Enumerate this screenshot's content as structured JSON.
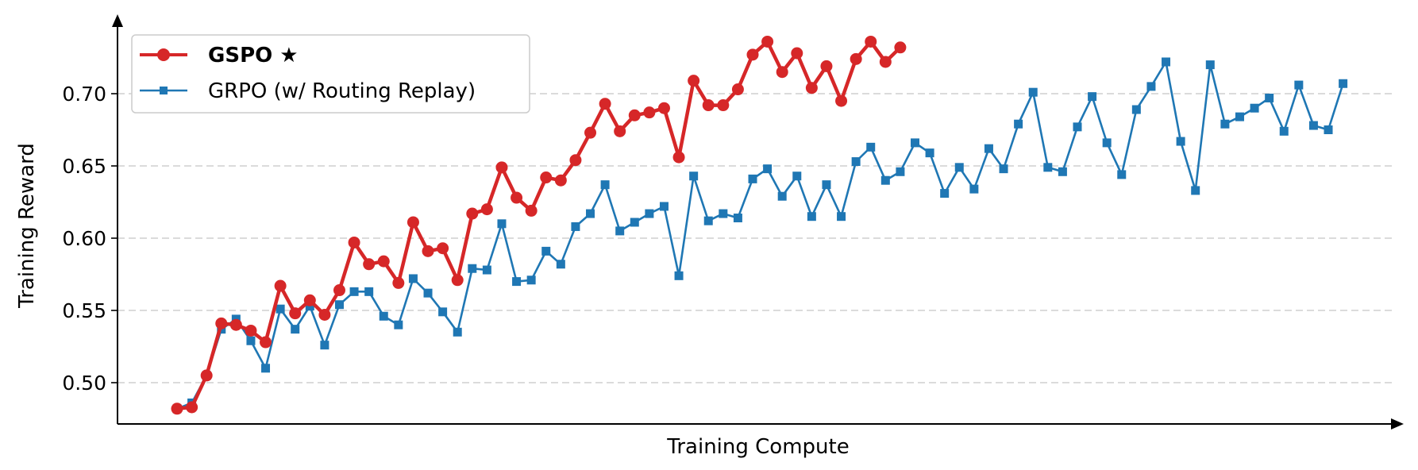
{
  "chart_data": {
    "type": "line",
    "xlabel": "Training Compute",
    "ylabel": "Training Reward",
    "ylim": [
      0.47,
      0.74
    ],
    "yticks": [
      0.5,
      0.55,
      0.6,
      0.65,
      0.7
    ],
    "ytick_labels": [
      "0.50",
      "0.55",
      "0.60",
      "0.65",
      "0.70"
    ],
    "grid": "horizontal dashed",
    "legend_position": "top-left",
    "series": [
      {
        "name": "GSPO ★",
        "color": "#d62728",
        "marker": "circle",
        "values": [
          0.482,
          0.483,
          0.505,
          0.541,
          0.54,
          0.536,
          0.528,
          0.567,
          0.548,
          0.557,
          0.547,
          0.564,
          0.597,
          0.582,
          0.584,
          0.569,
          0.611,
          0.591,
          0.593,
          0.571,
          0.617,
          0.62,
          0.649,
          0.628,
          0.619,
          0.642,
          0.64,
          0.654,
          0.673,
          0.693,
          0.674,
          0.685,
          0.687,
          0.69,
          0.656,
          0.709,
          0.692,
          0.692,
          0.703,
          0.727,
          0.736,
          0.715,
          0.728,
          0.704,
          0.719,
          0.695,
          0.724,
          0.736,
          0.722,
          0.732
        ]
      },
      {
        "name": "GRPO (w/ Routing Replay)",
        "color": "#1f77b4",
        "marker": "square",
        "values": [
          0.482,
          0.486,
          0.505,
          0.537,
          0.544,
          0.529,
          0.51,
          0.551,
          0.537,
          0.553,
          0.526,
          0.554,
          0.563,
          0.563,
          0.546,
          0.54,
          0.572,
          0.562,
          0.549,
          0.535,
          0.579,
          0.578,
          0.61,
          0.57,
          0.571,
          0.591,
          0.582,
          0.608,
          0.617,
          0.637,
          0.605,
          0.611,
          0.617,
          0.622,
          0.574,
          0.643,
          0.612,
          0.617,
          0.614,
          0.641,
          0.648,
          0.629,
          0.643,
          0.615,
          0.637,
          0.615,
          0.653,
          0.663,
          0.64,
          0.646,
          0.666,
          0.659,
          0.631,
          0.649,
          0.634,
          0.662,
          0.648,
          0.679,
          0.701,
          0.649,
          0.646,
          0.677,
          0.698,
          0.666,
          0.644,
          0.689,
          0.705,
          0.722,
          0.667,
          0.633,
          0.72,
          0.679,
          0.684,
          0.69,
          0.697,
          0.674,
          0.706,
          0.678,
          0.675,
          0.707
        ]
      }
    ]
  }
}
